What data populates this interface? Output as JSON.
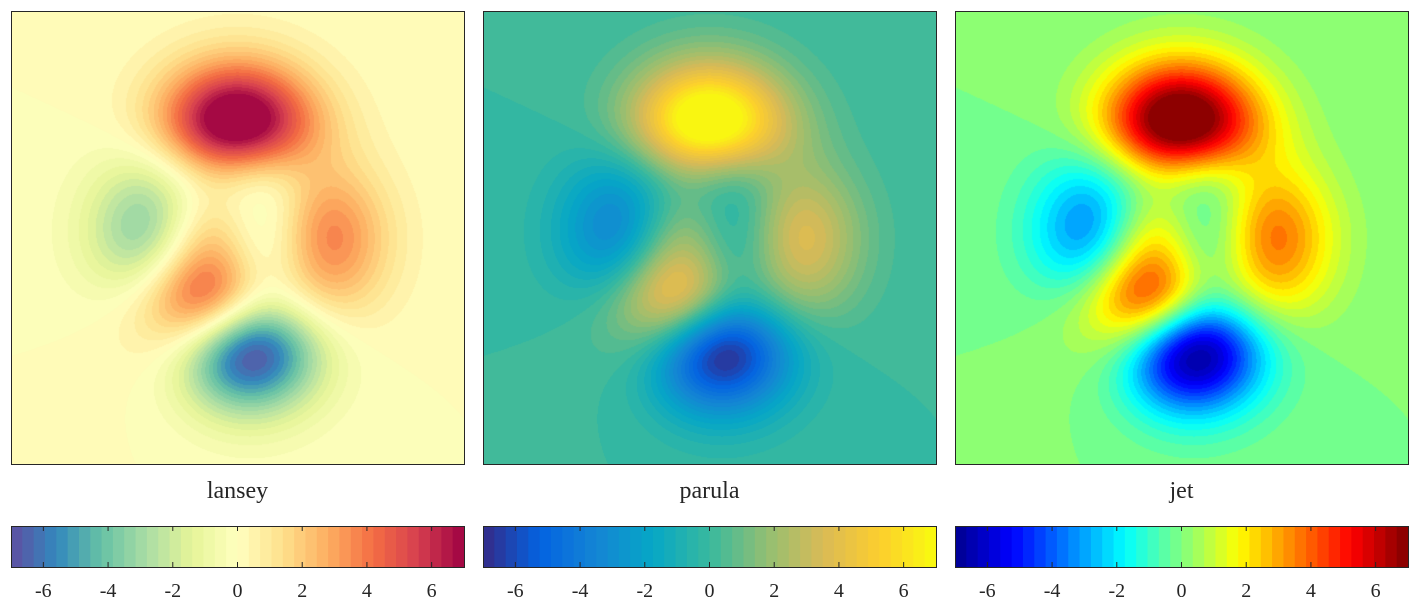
{
  "chart_data": [
    {
      "type": "contour",
      "title": "lansey",
      "colormap": "lansey",
      "function": "peaks",
      "xlim": [
        -3,
        3
      ],
      "ylim": [
        -3,
        3
      ],
      "clim": [
        -7,
        7
      ],
      "levels": 40,
      "colorbar": {
        "ticks": [
          -6,
          -4,
          -2,
          0,
          2,
          4,
          6
        ],
        "tick_labels": [
          "-6",
          "-4",
          "-2",
          "0",
          "2",
          "4",
          "6"
        ],
        "stops": [
          "#5E4FA2",
          "#3288BD",
          "#66C2A5",
          "#ABDDA4",
          "#E6F598",
          "#FFFFBF",
          "#FEE08B",
          "#FDAE61",
          "#F46D43",
          "#D53E4F",
          "#9E0142"
        ]
      }
    },
    {
      "type": "contour",
      "title": "parula",
      "colormap": "parula",
      "function": "peaks",
      "xlim": [
        -3,
        3
      ],
      "ylim": [
        -3,
        3
      ],
      "clim": [
        -7,
        7
      ],
      "levels": 40,
      "colorbar": {
        "ticks": [
          -6,
          -4,
          -2,
          0,
          2,
          4,
          6
        ],
        "tick_labels": [
          "-6",
          "-4",
          "-2",
          "0",
          "2",
          "4",
          "6"
        ],
        "stops": [
          "#352A87",
          "#0363E1",
          "#1485D4",
          "#06A7C6",
          "#38B99E",
          "#92BF73",
          "#D9BA56",
          "#FCCE2E",
          "#F9FB0E"
        ]
      }
    },
    {
      "type": "contour",
      "title": "jet",
      "colormap": "jet",
      "function": "peaks",
      "xlim": [
        -3,
        3
      ],
      "ylim": [
        -3,
        3
      ],
      "clim": [
        -7,
        7
      ],
      "levels": 40,
      "colorbar": {
        "ticks": [
          -6,
          -4,
          -2,
          0,
          2,
          4,
          6
        ],
        "tick_labels": [
          "-6",
          "-4",
          "-2",
          "0",
          "2",
          "4",
          "6"
        ],
        "stops": [
          "#00008F",
          "#0000FF",
          "#0080FF",
          "#00FFFF",
          "#80FF80",
          "#FFFF00",
          "#FF8000",
          "#FF0000",
          "#800000"
        ]
      }
    }
  ]
}
